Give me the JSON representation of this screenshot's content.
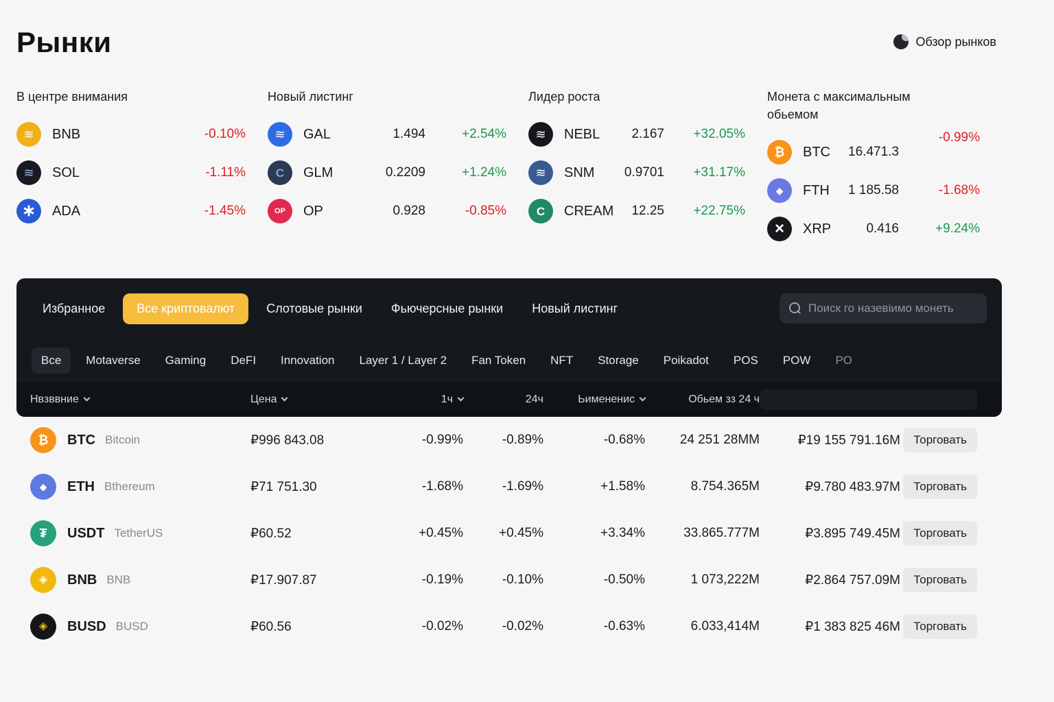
{
  "page": {
    "title": "Рынки",
    "overview_label": "Обзор рынков"
  },
  "colors": {
    "accent_yellow": "#f5bc3d",
    "red": "#e11d1d",
    "green": "#169a4b",
    "panel_bg": "#15181d",
    "page_bg": "#f6f6f7"
  },
  "icons": {
    "bnbspot": {
      "glyph": "≋"
    },
    "sol": {
      "glyph": "≋"
    },
    "ada": {
      "glyph": "∗"
    },
    "gal": {
      "glyph": "≋"
    },
    "glm": {
      "glyph": "C"
    },
    "op": {
      "glyph": "OP"
    },
    "nebl": {
      "glyph": "≋"
    },
    "snm": {
      "glyph": "≋"
    },
    "cream": {
      "glyph": "C"
    },
    "btc": {
      "glyph": "₿"
    },
    "fth": {
      "glyph": "◆"
    },
    "xrp": {
      "glyph": "×"
    },
    "eth": {
      "glyph": "◆"
    },
    "usdt": {
      "glyph": "₮"
    },
    "bnb": {
      "glyph": "◈"
    },
    "busd": {
      "glyph": "◈"
    }
  },
  "highlights": [
    {
      "title": "В центре внимания",
      "coins": [
        {
          "symbol": "BNB",
          "price": "",
          "change": "-0.10%",
          "dir": "down"
        },
        {
          "symbol": "SOL",
          "price": "",
          "change": "-1.11%",
          "dir": "down"
        },
        {
          "symbol": "ADA",
          "price": "",
          "change": "-1.45%",
          "dir": "down"
        }
      ]
    },
    {
      "title": "Новый листинг",
      "coins": [
        {
          "symbol": "GAL",
          "price": "1.494",
          "change": "+2.54%",
          "dir": "up"
        },
        {
          "symbol": "GLM",
          "price": "0.2209",
          "change": "+1.24%",
          "dir": "up"
        },
        {
          "symbol": "OP",
          "price": "0.928",
          "change": "-0.85%",
          "dir": "down"
        }
      ]
    },
    {
      "title": "Лидер роста",
      "coins": [
        {
          "symbol": "NEBL",
          "price": "2.167",
          "change": "+32.05%",
          "dir": "up"
        },
        {
          "symbol": "SNM",
          "price": "0.9701",
          "change": "+31.17%",
          "dir": "up"
        },
        {
          "symbol": "CREAM",
          "price": "12.25",
          "change": "+22.75%",
          "dir": "up"
        }
      ]
    },
    {
      "title": "Монета с максимальным обьемом",
      "coins": [
        {
          "symbol": "BTC",
          "price": "16.471.3",
          "change": "-0.99%",
          "dir": "down"
        },
        {
          "symbol": "FTH",
          "price": "1 185.58",
          "change": "-1.68%",
          "dir": "down"
        },
        {
          "symbol": "XRP",
          "price": "0.416",
          "change": "+9.24%",
          "dir": "up"
        }
      ]
    }
  ],
  "panel": {
    "tabs": [
      {
        "label": "Избранное"
      },
      {
        "label": "Все криптовалют"
      },
      {
        "label": "Слотовые рынки"
      },
      {
        "label": "Фьючерсные рынки"
      },
      {
        "label": "Новый листинг"
      }
    ],
    "search_placeholder": "Поиск го назевіимо монеть",
    "categories": [
      {
        "label": "Все"
      },
      {
        "label": "Motaverse"
      },
      {
        "label": "Gaming"
      },
      {
        "label": "DeFI"
      },
      {
        "label": "Innovation"
      },
      {
        "label": "Layer 1 / Layer 2"
      },
      {
        "label": "Fan Token"
      },
      {
        "label": "NFT"
      },
      {
        "label": "Storage"
      },
      {
        "label": "Poikadot"
      },
      {
        "label": "POS"
      },
      {
        "label": "POW"
      },
      {
        "label": "PO"
      }
    ],
    "table_header": {
      "name": "Нвзввние",
      "price": "Цена",
      "h1": "1ч",
      "h24": "24ч",
      "change": "Ьимененис",
      "volume": "Обьем зз 24 ч"
    }
  },
  "table": {
    "trade_label": "Торговать",
    "rows": [
      {
        "symbol": "BTC",
        "name": "Bitcoin",
        "price": "₽996 843.08",
        "h1": "-0.99%",
        "h1_dir": "down",
        "h24": "-0.89%",
        "h24_dir": "down",
        "change": "-0.68%",
        "vol_coin": "24 251 28MM",
        "vol_rub": "₽19 155 791.16M"
      },
      {
        "symbol": "ETH",
        "name": "Bthereum",
        "price": "₽71 751.30",
        "h1": "-1.68%",
        "h1_dir": "down",
        "h24": "-1.69%",
        "h24_dir": "down",
        "change": "+1.58%",
        "vol_coin": "8.754.365M",
        "vol_rub": "₽9.780 483.97M"
      },
      {
        "symbol": "USDT",
        "name": "TetherUS",
        "price": "₽60.52",
        "h1": "+0.45%",
        "h1_dir": "up",
        "h24": "+0.45%",
        "h24_dir": "up",
        "change": "+3.34%",
        "vol_coin": "33.865.777M",
        "vol_rub": "₽3.895 749.45M"
      },
      {
        "symbol": "BNB",
        "name": "BNB",
        "price": "₽17.907.87",
        "h1": "-0.19%",
        "h1_dir": "down",
        "h24": "-0.10%",
        "h24_dir": "down",
        "change": "-0.50%",
        "vol_coin": "1 073,222M",
        "vol_rub": "₽2.864 757.09M"
      },
      {
        "symbol": "BUSD",
        "name": "BUSD",
        "price": "₽60.56",
        "h1": "-0.02%",
        "h1_dir": "down",
        "h24": "-0.02%",
        "h24_dir": "down",
        "change": "-0.63%",
        "vol_coin": "6.033,414M",
        "vol_rub": "₽1 383 825 46M"
      }
    ]
  }
}
